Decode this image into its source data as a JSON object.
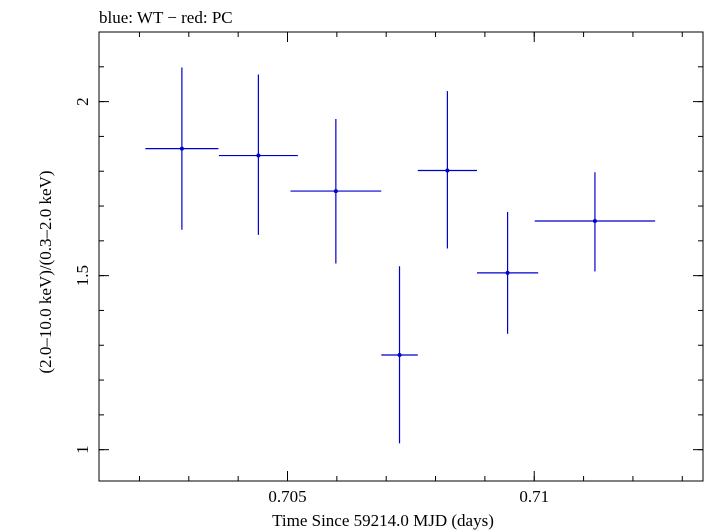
{
  "chart_data": {
    "type": "scatter",
    "title": "blue: WT − red: PC",
    "xlabel": "Time Since 59214.0 MJD (days)",
    "ylabel": "(2.0–10.0 keV)/(0.3–2.0 keV)",
    "xlim": [
      0.70118,
      0.71342
    ],
    "ylim": [
      0.91,
      2.2
    ],
    "x_ticks": [
      {
        "value": 0.705,
        "label": "0.705"
      },
      {
        "value": 0.71,
        "label": "0.71"
      }
    ],
    "y_ticks": [
      {
        "value": 1.0,
        "label": "1"
      },
      {
        "value": 1.5,
        "label": "1.5"
      },
      {
        "value": 2.0,
        "label": "2"
      }
    ],
    "x_minor_step": 0.001,
    "y_minor_step": 0.1,
    "grid": false,
    "series": [
      {
        "color": "#0000cc",
        "points": [
          {
            "x": 0.70286,
            "y": 1.865,
            "xerr": 0.00074,
            "ylo": 1.632,
            "yhi": 2.098
          },
          {
            "x": 0.70441,
            "y": 1.845,
            "xerr": 0.0008,
            "ylo": 1.617,
            "yhi": 2.078
          },
          {
            "x": 0.70598,
            "y": 1.743,
            "xerr": 0.00092,
            "ylo": 1.535,
            "yhi": 1.95
          },
          {
            "x": 0.70727,
            "y": 1.272,
            "xerr": 0.00037,
            "ylo": 1.018,
            "yhi": 1.527
          },
          {
            "x": 0.70824,
            "y": 1.802,
            "xerr": 0.0006,
            "ylo": 1.578,
            "yhi": 2.03
          },
          {
            "x": 0.70946,
            "y": 1.508,
            "xerr": 0.00062,
            "ylo": 1.333,
            "yhi": 1.683
          },
          {
            "x": 0.71123,
            "y": 1.657,
            "xerr": 0.00122,
            "ylo": 1.512,
            "yhi": 1.797
          }
        ]
      }
    ]
  }
}
